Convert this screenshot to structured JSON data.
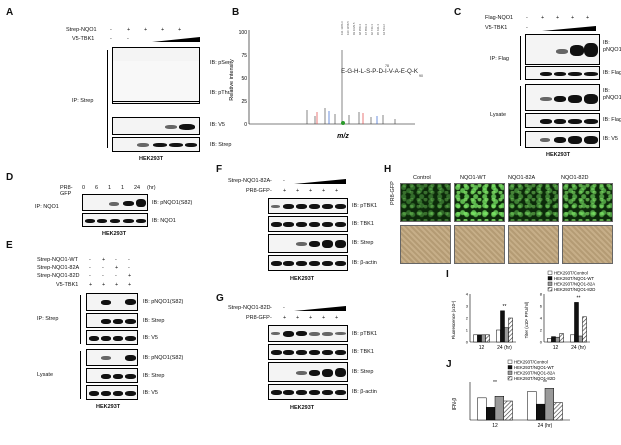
{
  "panels": {
    "A": {
      "label": "A",
      "rows": [
        "Strep-NQO1",
        "V5-TBK1"
      ],
      "row_vals": [
        [
          "-",
          "+",
          "+",
          "+",
          "+"
        ],
        [
          "-",
          "-"
        ]
      ],
      "ip": "IP: Strep",
      "ib": [
        "IB: pSer",
        "IB: pThr",
        "IB: V5",
        "IB: Strep"
      ],
      "cell": "HEK293T"
    },
    "B": {
      "label": "B",
      "ylabel": "Relative intensity",
      "xlabel": "m/z",
      "yticks": [
        "100",
        "75",
        "50",
        "25",
        "0"
      ],
      "sequence": "E-G-H-L-S-P-D-I-V-A-E-Q-K",
      "seq_start": "78",
      "seq_end": "90",
      "phospho": "S"
    },
    "C": {
      "label": "C",
      "rows": [
        "Flag-NQO1",
        "V5-TBK1"
      ],
      "row_vals": [
        [
          "-",
          "+",
          "+",
          "+",
          "+"
        ],
        [
          "-"
        ]
      ],
      "groups": [
        "IP: Flag",
        "Lysate"
      ],
      "ib": [
        "IB:\npNQO1(S82)",
        "IB: Flag",
        "IB:\npNQO1(S82)",
        "IB: Flag",
        "IB: V5"
      ],
      "cell": "HEK293T"
    },
    "D": {
      "label": "D",
      "rows": [
        "PR8-\nGFP"
      ],
      "row_vals": [
        "0",
        "6",
        "1",
        "1",
        "24",
        "(hr)"
      ],
      "ip": "IP: NQO1",
      "ib": [
        "IB: pNQO1(S82)",
        "IB: NQO1"
      ],
      "cell": "HEK293T"
    },
    "E": {
      "label": "E",
      "rows": [
        "Strep-NQO1-WT",
        "Strep-NQO1-82A",
        "Strep-NQO1-82D",
        "V5-TBK1"
      ],
      "row_vals": [
        [
          "-",
          "+",
          "-",
          "-"
        ],
        [
          "-",
          "-",
          "+",
          "-"
        ],
        [
          "-",
          "-",
          "-",
          "+"
        ],
        [
          "+",
          "+",
          "+",
          "+"
        ]
      ],
      "groups": [
        "IP: Strep",
        "Lysate"
      ],
      "ib": [
        "IB: pNQO1(S82)",
        "IB: Strep",
        "IB: V5",
        "IB: pNQO1(S82)",
        "IB: Strep",
        "IB: V5"
      ],
      "cell": "HEK293T"
    },
    "F": {
      "label": "F",
      "rows": [
        "Strep-NQO1-82A",
        "PR8-GFP"
      ],
      "row_vals": [
        [
          "-",
          "-"
        ],
        [
          "-",
          "+",
          "+",
          "+",
          "+",
          "+"
        ]
      ],
      "ib": [
        "IB: pTBK1",
        "IB: TBK1",
        "IB: Strep",
        "IB: β-actin"
      ],
      "cell": "HEK293T"
    },
    "G": {
      "label": "G",
      "rows": [
        "Strep-NQO1-82D",
        "PR8-GFP"
      ],
      "row_vals": [
        [
          "-",
          "-"
        ],
        [
          "-",
          "+",
          "+",
          "+",
          "+",
          "+"
        ]
      ],
      "ib": [
        "IB: pTBK1",
        "IB: TBK1",
        "IB: Strep",
        "IB: β-actin"
      ],
      "cell": "HEK293T"
    },
    "H": {
      "label": "H",
      "cols": [
        "Control",
        "NQO1-WT",
        "NQO1-82A",
        "NQO1-82D"
      ],
      "side": "PR8-GFP"
    },
    "I": {
      "label": "I",
      "legend": [
        "HEK293T/Control",
        "HEK293T/NQO1-WT",
        "HEK293T/NQO1-82A",
        "HEK293T/NQO1-82D"
      ],
      "left_ylabel": "Fluorescence (x10⁴)",
      "right_ylabel": "Titer (x10⁵ PFU/ml)",
      "xcats": [
        "12",
        "24 (hr)"
      ],
      "sig": "**",
      "left_yticks": [
        "4",
        "3",
        "2",
        "1",
        "0"
      ],
      "right_yticks": [
        "8",
        "6",
        "4",
        "2",
        "0"
      ]
    },
    "J": {
      "label": "J",
      "legend": [
        "HEK293T/Control",
        "HEK293T/NQO1-WT",
        "HEK293T/NQO1-82A",
        "HEK293T/NQO1-82D"
      ],
      "ylabel": "IFN-β",
      "xcats": [
        "12",
        "24 (hr)"
      ],
      "sig": "**"
    }
  },
  "colors": {
    "fluor_green": "#2f8a2a",
    "brightfield": "#b9a07a"
  },
  "chart_data": [
    {
      "type": "bar",
      "categories": [
        "12",
        "24 (hr)"
      ],
      "series": [
        {
          "name": "HEK293T/Control",
          "values": [
            0.6,
            1.0
          ]
        },
        {
          "name": "HEK293T/NQO1-WT",
          "values": [
            0.6,
            2.6
          ]
        },
        {
          "name": "HEK293T/NQO1-82A",
          "values": [
            0.6,
            1.2
          ]
        },
        {
          "name": "HEK293T/NQO1-82D",
          "values": [
            0.6,
            2.0
          ]
        }
      ],
      "ylabel": "Fluorescence (x10⁴)",
      "ylim": [
        0,
        4
      ]
    },
    {
      "type": "bar",
      "categories": [
        "12",
        "24 (hr)"
      ],
      "series": [
        {
          "name": "HEK293T/Control",
          "values": [
            0.6,
            1.2
          ]
        },
        {
          "name": "HEK293T/NQO1-WT",
          "values": [
            0.9,
            6.6
          ]
        },
        {
          "name": "HEK293T/NQO1-82A",
          "values": [
            0.8,
            1.0
          ]
        },
        {
          "name": "HEK293T/NQO1-82D",
          "values": [
            1.4,
            4.2
          ]
        }
      ],
      "ylabel": "Titer (x10⁵ PFU/ml)",
      "ylim": [
        0,
        8
      ]
    },
    {
      "type": "bar",
      "categories": [
        "12",
        "24 (hr)"
      ],
      "series": [
        {
          "name": "HEK293T/Control",
          "values": [
            0.7,
            0.9
          ]
        },
        {
          "name": "HEK293T/NQO1-WT",
          "values": [
            0.4,
            0.5
          ]
        },
        {
          "name": "HEK293T/NQO1-82A",
          "values": [
            0.75,
            1.0
          ]
        },
        {
          "name": "HEK293T/NQO1-82D",
          "values": [
            0.6,
            0.55
          ]
        }
      ],
      "ylabel": "IFN-β",
      "ylim": [
        0,
        1.2
      ]
    }
  ]
}
